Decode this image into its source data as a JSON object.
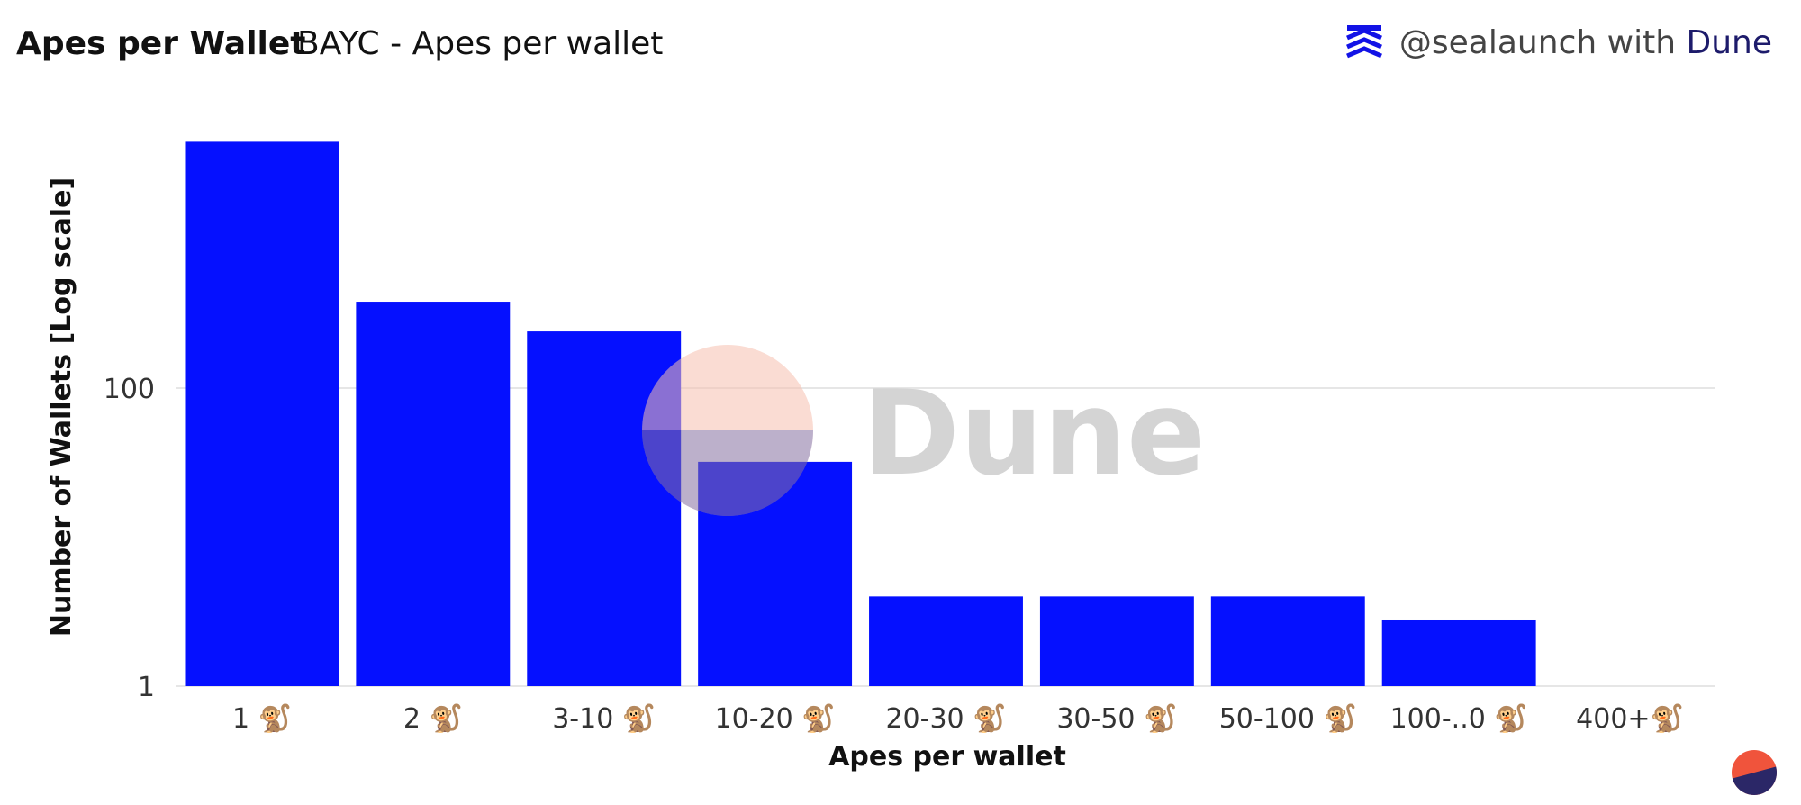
{
  "header": {
    "title": "Apes per Wallet",
    "subtitle": "BAYC - Apes per wallet",
    "handle": "@sealaunch",
    "with": "with",
    "brand": "Dune"
  },
  "icons": {
    "brand_logo": "sealaunch-chevrons-icon",
    "watermark_logo": "dune-logo-icon",
    "corner_logo": "dune-circle-icon"
  },
  "colors": {
    "bar": "#0510ff",
    "brand_text": "#1d1b6b",
    "logo_orange": "#f0543c",
    "logo_navy": "#2b2767"
  },
  "watermark": {
    "text": "Dune"
  },
  "chart_data": {
    "type": "bar",
    "xlabel": "Apes per wallet",
    "ylabel": "Number of Wallets [Log scale]",
    "yscale": "log",
    "ylim": [
      1,
      10000
    ],
    "yticks": [
      1,
      100
    ],
    "grid": true,
    "categories": [
      "1 🐒",
      "2 🐒",
      "3-10 🐒",
      "10-20 🐒",
      "20-30 🐒",
      "30-50 🐒",
      "50-100 🐒",
      "100-..0 🐒",
      "400+🐒"
    ],
    "values": [
      4500,
      380,
      240,
      32,
      4,
      4,
      4,
      2.8,
      null
    ]
  }
}
